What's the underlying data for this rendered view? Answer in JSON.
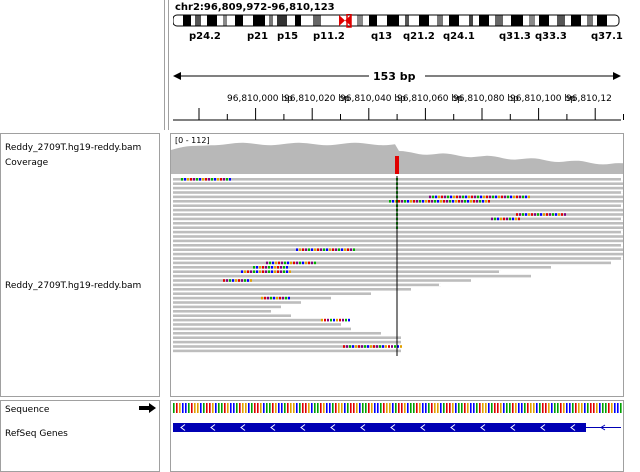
{
  "header": {
    "locus": "chr2:96,809,972-96,810,123",
    "cytobands": [
      "p24.2",
      "p21",
      "p15",
      "p11.2",
      "q13",
      "q21.2",
      "q24.1",
      "q31.3",
      "q33.3",
      "q37.1"
    ],
    "span_label": "153 bp",
    "ruler_ticks": [
      "96,810,000 bp",
      "96,810,020 bp",
      "96,810,040 bp",
      "96,810,060 bp",
      "96,810,080 bp",
      "96,810,100 bp",
      "96,810,12"
    ]
  },
  "tracks": {
    "coverage_name": "Reddy_2709T.hg19-reddy.bam Coverage",
    "coverage_range": "[0 - 112]",
    "alignment_name": "Reddy_2709T.hg19-reddy.bam",
    "sequence_name": "Sequence",
    "genes_name": "RefSeq Genes"
  },
  "colors": {
    "read": "#bdbdbd",
    "coverage": "#b8b8b8",
    "mismatch_highlight": "#e00000",
    "gene": "#0000b4",
    "centromere": "#e00000"
  },
  "icons": {
    "sequence_strand": "arrow-right-icon"
  }
}
